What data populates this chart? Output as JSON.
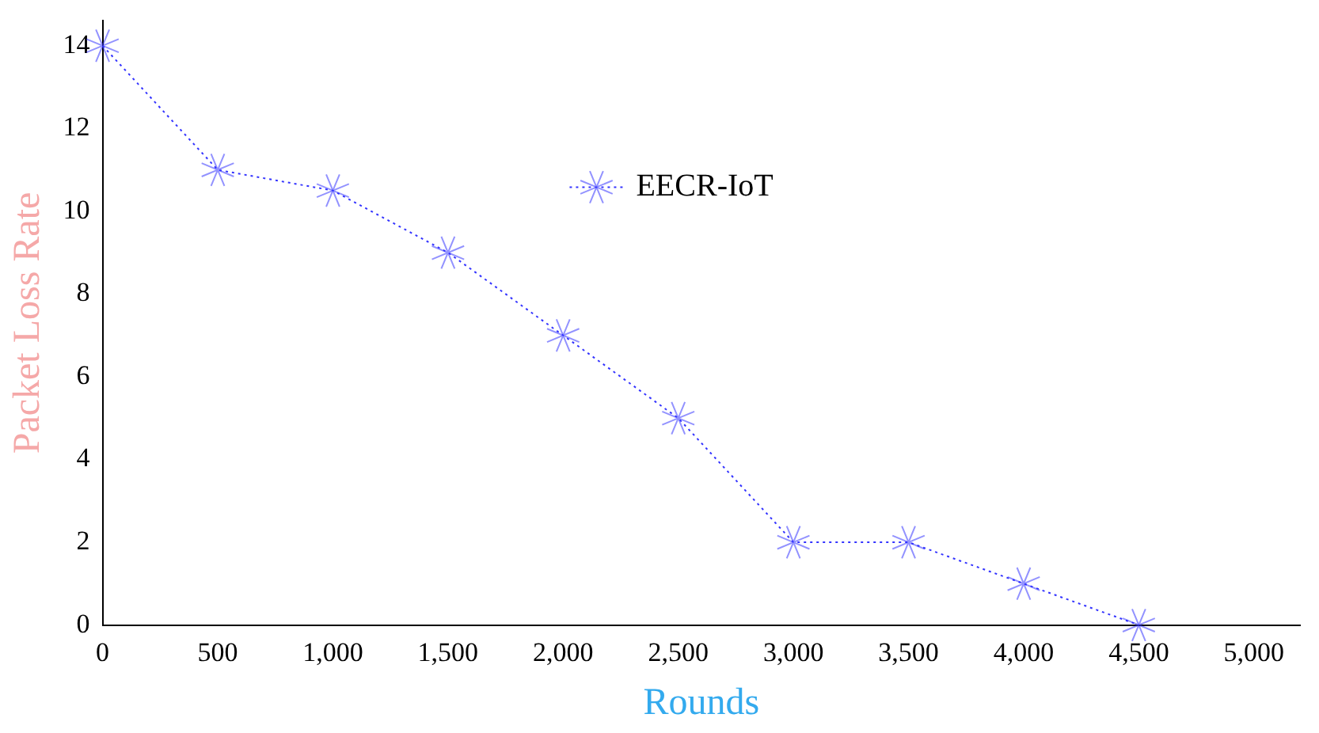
{
  "chart_data": {
    "type": "line",
    "xlabel": "Rounds",
    "ylabel": "Packet Loss Rate",
    "x": [
      0,
      500,
      1000,
      1500,
      2000,
      2500,
      3000,
      3500,
      4000,
      4500
    ],
    "series": [
      {
        "name": "EECR-IoT",
        "color": "#3333ff",
        "values": [
          14,
          11,
          10.5,
          9,
          7,
          5,
          2,
          2,
          1,
          0
        ]
      }
    ],
    "xlim": [
      0,
      5200
    ],
    "xticks": [
      {
        "value": 0,
        "label": "0"
      },
      {
        "value": 500,
        "label": "500"
      },
      {
        "value": 1000,
        "label": "1,000"
      },
      {
        "value": 1500,
        "label": "1,500"
      },
      {
        "value": 2000,
        "label": "2,000"
      },
      {
        "value": 2500,
        "label": "2,500"
      },
      {
        "value": 3000,
        "label": "3,000"
      },
      {
        "value": 3500,
        "label": "3,500"
      },
      {
        "value": 4000,
        "label": "4,000"
      },
      {
        "value": 4500,
        "label": "4,500"
      },
      {
        "value": 5000,
        "label": "5,000"
      }
    ],
    "ylim": [
      0,
      14.6
    ],
    "yticks": [
      0,
      2,
      4,
      6,
      8,
      10,
      12,
      14
    ],
    "grid": false,
    "legend": "top",
    "marker": "cross",
    "line_style": "dotted"
  }
}
